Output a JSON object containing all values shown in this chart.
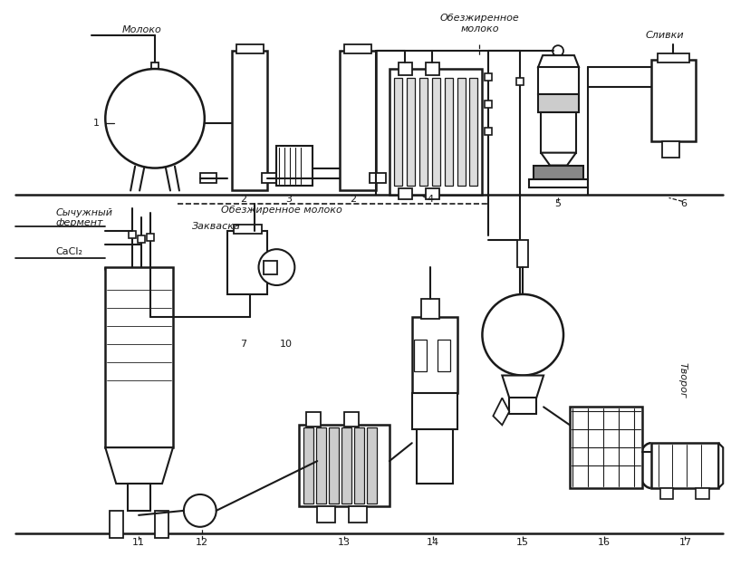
{
  "bg_color": "#ffffff",
  "line_color": "#1a1a1a",
  "text_color": "#1a1a1a",
  "labels": {
    "moloko": "Молоко",
    "slivki": "Сливки",
    "obezzhirennoe_top": "Обезжиренное\nмолоко",
    "obezzhirennoe_mid": "Обезжиренное молоко",
    "sychuzhniy": "Сычужный\nфермент",
    "cacl2": "CaCl₂",
    "zakvaska": "Закваска",
    "tvorog": "Творог",
    "n1": "1",
    "n2a": "2",
    "n3": "3",
    "n2b": "2",
    "n4": "4",
    "n5": "5",
    "n6": "6",
    "n7": "7",
    "n10": "10",
    "n11": "11",
    "n12": "12",
    "n13": "13",
    "n14": "14",
    "n15": "15",
    "n16": "16",
    "n17": "17"
  }
}
